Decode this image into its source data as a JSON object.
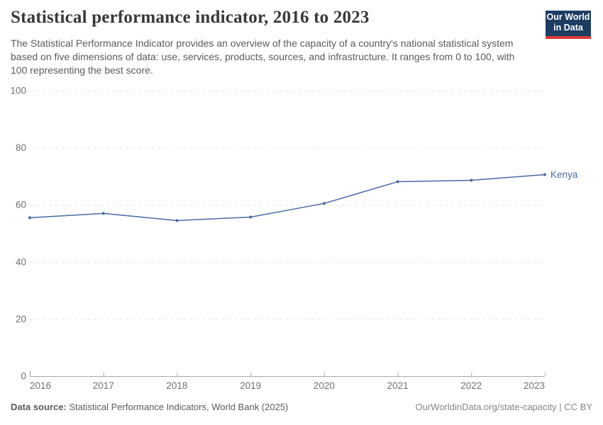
{
  "header": {
    "title": "Statistical performance indicator, 2016 to 2023",
    "subtitle": "The Statistical Performance Indicator provides an overview of the capacity of a country's national statistical system based on five dimensions of data: use, services, products, sources, and infrastructure. It ranges from 0 to 100, with 100 representing the best score.",
    "logo": {
      "line1": "Our World",
      "line2": "in Data",
      "bg_color": "#1d3d63",
      "stripe_color": "#dc3a3c"
    }
  },
  "chart_data": {
    "type": "line",
    "title": "Statistical performance indicator, 2016 to 2023",
    "x": [
      2016,
      2017,
      2018,
      2019,
      2020,
      2021,
      2022,
      2023
    ],
    "series": [
      {
        "name": "Kenya",
        "color": "#4a6aa5",
        "values": [
          55.5,
          57.0,
          54.5,
          55.7,
          60.5,
          68.1,
          68.6,
          70.6
        ]
      }
    ],
    "xlabel": "",
    "ylabel": "",
    "ylim": [
      0,
      100
    ],
    "yticks": [
      0,
      20,
      40,
      60,
      80,
      100
    ],
    "grid": "horizontal-dashed",
    "legend": "end-of-line-label",
    "axis_color": "#a8a8a8",
    "gridline_color": "#e5e5e5",
    "tick_label_color": "#6e7177"
  },
  "footer": {
    "source_label": "Data source:",
    "source_text": "Statistical Performance Indicators, World Bank (2025)",
    "credit": "OurWorldinData.org/state-capacity | CC BY"
  }
}
